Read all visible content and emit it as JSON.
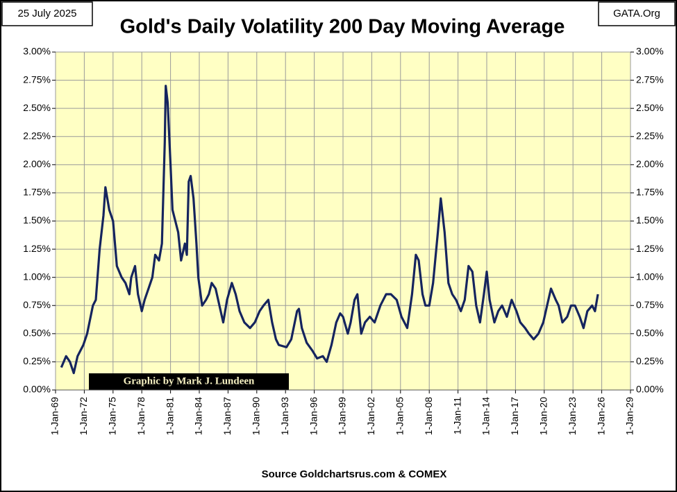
{
  "chart_data": {
    "type": "line",
    "title": "Gold's Daily Volatility 200 Day Moving Average",
    "date_label": "25 July 2025",
    "source_label": "GATA.Org",
    "credit": "Graphic by Mark J. Lundeen",
    "footer": "Source Goldchartsrus.com & COMEX",
    "color": "#15245e",
    "grid": true,
    "xlim": [
      1969,
      2029
    ],
    "xticks": [
      {
        "value": 1969,
        "label": "1-Jan-69"
      },
      {
        "value": 1972,
        "label": "1-Jan-72"
      },
      {
        "value": 1975,
        "label": "1-Jan-75"
      },
      {
        "value": 1978,
        "label": "1-Jan-78"
      },
      {
        "value": 1981,
        "label": "1-Jan-81"
      },
      {
        "value": 1984,
        "label": "1-Jan-84"
      },
      {
        "value": 1987,
        "label": "1-Jan-87"
      },
      {
        "value": 1990,
        "label": "1-Jan-90"
      },
      {
        "value": 1993,
        "label": "1-Jan-93"
      },
      {
        "value": 1996,
        "label": "1-Jan-96"
      },
      {
        "value": 1999,
        "label": "1-Jan-99"
      },
      {
        "value": 2002,
        "label": "1-Jan-02"
      },
      {
        "value": 2005,
        "label": "1-Jan-05"
      },
      {
        "value": 2008,
        "label": "1-Jan-08"
      },
      {
        "value": 2011,
        "label": "1-Jan-11"
      },
      {
        "value": 2014,
        "label": "1-Jan-14"
      },
      {
        "value": 2017,
        "label": "1-Jan-17"
      },
      {
        "value": 2020,
        "label": "1-Jan-20"
      },
      {
        "value": 2023,
        "label": "1-Jan-23"
      },
      {
        "value": 2026,
        "label": "1-Jan-26"
      },
      {
        "value": 2029,
        "label": "1-Jan-29"
      }
    ],
    "ylim": [
      0,
      3
    ],
    "yticks": [
      {
        "value": 0,
        "label": "0.00%"
      },
      {
        "value": 0.25,
        "label": "0.25%"
      },
      {
        "value": 0.5,
        "label": "0.50%"
      },
      {
        "value": 0.75,
        "label": "0.75%"
      },
      {
        "value": 1,
        "label": "1.00%"
      },
      {
        "value": 1.25,
        "label": "1.25%"
      },
      {
        "value": 1.5,
        "label": "1.50%"
      },
      {
        "value": 1.75,
        "label": "1.75%"
      },
      {
        "value": 2,
        "label": "2.00%"
      },
      {
        "value": 2.25,
        "label": "2.25%"
      },
      {
        "value": 2.5,
        "label": "2.50%"
      },
      {
        "value": 2.75,
        "label": "2.75%"
      },
      {
        "value": 3,
        "label": "3.00%"
      }
    ],
    "y2lim": [
      0,
      3
    ],
    "y2ticks": [
      {
        "value": 0,
        "label": "0.00%"
      },
      {
        "value": 0.25,
        "label": "0.25%"
      },
      {
        "value": 0.5,
        "label": "0.50%"
      },
      {
        "value": 0.75,
        "label": "0.75%"
      },
      {
        "value": 1,
        "label": "1.00%"
      },
      {
        "value": 1.25,
        "label": "1.25%"
      },
      {
        "value": 1.5,
        "label": "1.50%"
      },
      {
        "value": 1.75,
        "label": "1.75%"
      },
      {
        "value": 2,
        "label": "2.00%"
      },
      {
        "value": 2.25,
        "label": "2.25%"
      },
      {
        "value": 2.5,
        "label": "2.50%"
      },
      {
        "value": 2.75,
        "label": "2.75%"
      },
      {
        "value": 3,
        "label": "3.00%"
      }
    ],
    "x": [
      1969.6,
      1970.1,
      1970.5,
      1970.9,
      1971.3,
      1971.9,
      1972.3,
      1972.9,
      1973.2,
      1973.6,
      1974.0,
      1974.2,
      1974.6,
      1975.0,
      1975.4,
      1975.9,
      1976.3,
      1976.7,
      1976.9,
      1977.3,
      1977.6,
      1978.0,
      1978.3,
      1978.7,
      1979.1,
      1979.4,
      1979.8,
      1980.1,
      1980.4,
      1980.5,
      1980.7,
      1981.0,
      1981.2,
      1981.5,
      1981.8,
      1982.1,
      1982.5,
      1982.7,
      1982.9,
      1983.1,
      1983.4,
      1983.7,
      1983.9,
      1984.3,
      1984.7,
      1985.0,
      1985.3,
      1985.7,
      1986.1,
      1986.5,
      1986.9,
      1987.4,
      1987.8,
      1988.2,
      1988.7,
      1989.3,
      1989.8,
      1990.3,
      1990.7,
      1991.2,
      1991.6,
      1992.0,
      1992.3,
      1993.1,
      1993.6,
      1994.2,
      1994.4,
      1994.7,
      1995.2,
      1995.8,
      1996.3,
      1996.9,
      1997.3,
      1997.8,
      1998.3,
      1998.7,
      1999.0,
      1999.5,
      1999.8,
      2000.2,
      2000.5,
      2000.9,
      2001.3,
      2001.8,
      2002.3,
      2002.9,
      2003.5,
      2004.0,
      2004.6,
      2005.1,
      2005.7,
      2006.2,
      2006.6,
      2006.9,
      2007.3,
      2007.6,
      2008.0,
      2008.4,
      2008.9,
      2009.2,
      2009.6,
      2010.0,
      2010.4,
      2010.8,
      2011.3,
      2011.7,
      2012.1,
      2012.5,
      2012.9,
      2013.3,
      2013.7,
      2014.0,
      2014.3,
      2014.8,
      2015.2,
      2015.6,
      2016.1,
      2016.6,
      2017.1,
      2017.5,
      2018.0,
      2018.4,
      2018.9,
      2019.4,
      2019.9,
      2020.3,
      2020.7,
      2021.2,
      2021.5,
      2021.9,
      2022.4,
      2022.8,
      2023.2,
      2023.7,
      2024.1,
      2024.5,
      2025.0,
      2025.3,
      2025.6
    ],
    "values": [
      0.2,
      0.3,
      0.25,
      0.15,
      0.3,
      0.4,
      0.5,
      0.75,
      0.8,
      1.25,
      1.55,
      1.8,
      1.6,
      1.5,
      1.1,
      1.0,
      0.95,
      0.85,
      1.0,
      1.1,
      0.85,
      0.7,
      0.8,
      0.9,
      1.0,
      1.2,
      1.15,
      1.3,
      2.2,
      2.7,
      2.55,
      2.0,
      1.6,
      1.5,
      1.4,
      1.15,
      1.3,
      1.2,
      1.85,
      1.9,
      1.7,
      1.3,
      1.0,
      0.75,
      0.8,
      0.85,
      0.95,
      0.9,
      0.75,
      0.6,
      0.8,
      0.95,
      0.85,
      0.7,
      0.6,
      0.55,
      0.6,
      0.7,
      0.75,
      0.8,
      0.6,
      0.45,
      0.4,
      0.38,
      0.45,
      0.7,
      0.72,
      0.55,
      0.42,
      0.35,
      0.28,
      0.3,
      0.25,
      0.4,
      0.6,
      0.68,
      0.65,
      0.5,
      0.6,
      0.8,
      0.85,
      0.5,
      0.6,
      0.65,
      0.6,
      0.75,
      0.85,
      0.85,
      0.8,
      0.65,
      0.55,
      0.85,
      1.2,
      1.15,
      0.85,
      0.75,
      0.75,
      0.95,
      1.4,
      1.7,
      1.4,
      0.95,
      0.85,
      0.8,
      0.7,
      0.8,
      1.1,
      1.05,
      0.75,
      0.6,
      0.85,
      1.05,
      0.8,
      0.6,
      0.7,
      0.75,
      0.65,
      0.8,
      0.7,
      0.6,
      0.55,
      0.5,
      0.45,
      0.5,
      0.6,
      0.75,
      0.9,
      0.8,
      0.75,
      0.6,
      0.65,
      0.75,
      0.75,
      0.65,
      0.55,
      0.7,
      0.75,
      0.7,
      0.85
    ]
  }
}
